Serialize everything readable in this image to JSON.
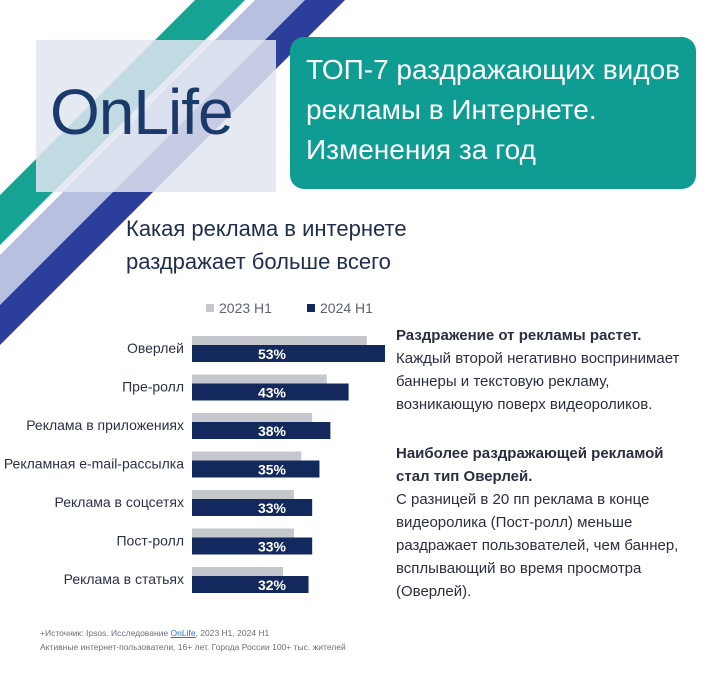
{
  "brand": {
    "logo_text": "OnLife"
  },
  "header": {
    "title_lines": [
      "ТОП-7 раздражающих видов",
      "рекламы в Интернете.",
      "Изменения за год"
    ]
  },
  "question": {
    "lines": [
      "Какая реклама в  интернете",
      "раздражает больше всего"
    ]
  },
  "chart_data": {
    "type": "bar",
    "orientation": "horizontal",
    "categories": [
      "Оверлей",
      "Пре-ролл",
      "Реклама в приложениях",
      "Рекламная e-mail-рассылка",
      "Реклама в соцсетях",
      "Пост-ролл",
      "Реклама в статьях"
    ],
    "series": [
      {
        "name": "2023 H1",
        "values": [
          48,
          37,
          33,
          30,
          28,
          28,
          25
        ],
        "color": "#c4c7cc",
        "labels_shown": false
      },
      {
        "name": "2024 H1",
        "values": [
          53,
          43,
          38,
          35,
          33,
          33,
          32
        ],
        "color": "#13285c",
        "labels_shown": true
      }
    ],
    "value_labels": [
      "53%",
      "43%",
      "38%",
      "35%",
      "33%",
      "33%",
      "32%"
    ],
    "legend_position": "top",
    "grid": false,
    "xlim": [
      0,
      53
    ]
  },
  "insights": {
    "block1_title": "Раздражение от рекламы растет.",
    "block1_lines": [
      "Каждый второй негативно воспринимает",
      "баннеры и текстовую рекламу,",
      "возникающую поверх видеороликов."
    ],
    "block2_title_lines": [
      "Наиболее раздражающей рекламой",
      "стал тип Оверлей."
    ],
    "block2_lines": [
      "С разницей в 20 пп реклама в конце",
      "видеоролика (Пост-ролл) меньше",
      "раздражает пользователей, чем баннер,",
      "всплывающий во время просмотра",
      "(Оверлей)."
    ]
  },
  "footnote": {
    "source_prefix": "+Источник: Ipsos. Исследование ",
    "source_link": "OnLife",
    "source_suffix": ", 2023 H1, 2024 H1",
    "audience": "Активные интернет-пользователи, 16+ лет. Города России 100+ тыс. жителей"
  },
  "colors": {
    "teal": "#0f9c93",
    "navy": "#13285c",
    "gray": "#c4c7cc",
    "stripe_blue": "#2c3e9a",
    "stripe_light": "#aeb6dc"
  }
}
